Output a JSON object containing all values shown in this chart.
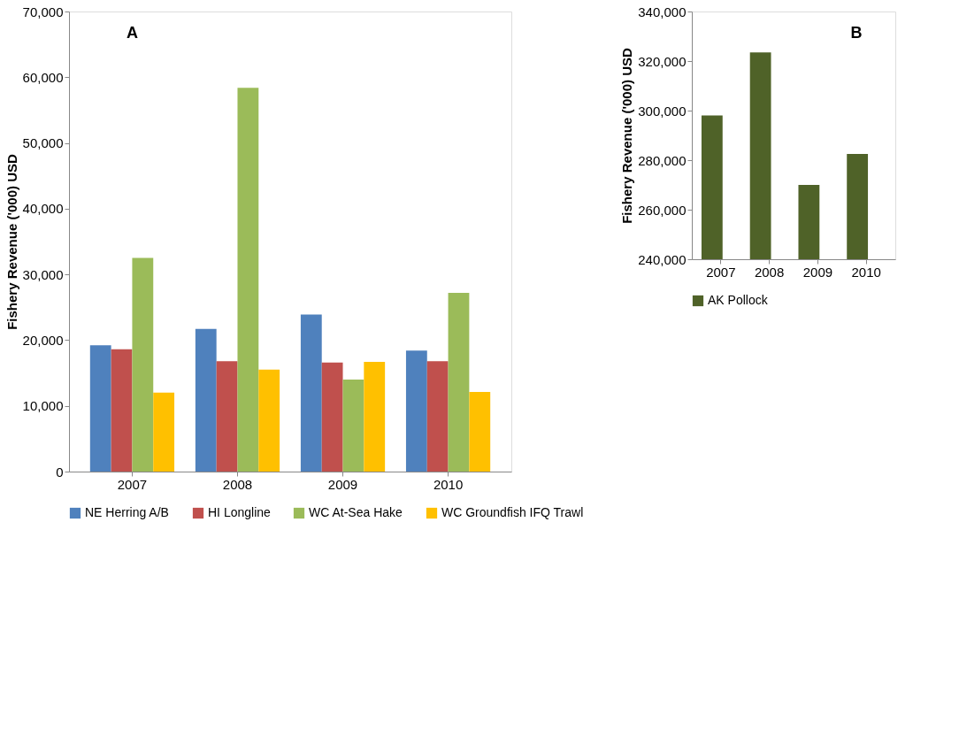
{
  "chart_data": [
    {
      "type": "bar",
      "ylabel": "Fishery Revenue ('000) USD",
      "annotations": [
        "A"
      ],
      "categories": [
        "2007",
        "2008",
        "2009",
        "2010"
      ],
      "series": [
        {
          "name": "NE Herring A/B",
          "color": "#4f81bd",
          "values": [
            19200,
            21700,
            23900,
            18400
          ]
        },
        {
          "name": "HI Longline",
          "color": "#c0504d",
          "values": [
            18600,
            16800,
            16600,
            16800
          ]
        },
        {
          "name": "WC At-Sea Hake",
          "color": "#9bbb59",
          "values": [
            32500,
            58400,
            14000,
            27200
          ]
        },
        {
          "name": "WC Groundfish IFQ Trawl",
          "color": "#ffc000",
          "values": [
            12000,
            15500,
            16700,
            12100
          ]
        }
      ],
      "ylim": [
        0,
        70000
      ],
      "yticks": [
        0,
        {
          "value": 10000,
          "label": "10,000"
        },
        {
          "value": 20000,
          "label": "20,000"
        },
        {
          "value": 30000,
          "label": "30,000"
        },
        {
          "value": 40000,
          "label": "40,000"
        },
        {
          "value": 50000,
          "label": "50,000"
        },
        {
          "value": 60000,
          "label": "60,000"
        },
        {
          "value": 70000,
          "label": "70,000"
        }
      ],
      "grid": false,
      "legend": "bottom"
    },
    {
      "type": "bar",
      "ylabel": "Fishery Revenue ('000) USD",
      "annotations": [
        "B"
      ],
      "categories": [
        "2007",
        "2008",
        "2009",
        "2010"
      ],
      "series": [
        {
          "name": "AK Pollock",
          "color": "#4f6228",
          "values": [
            298000,
            323500,
            270000,
            282500
          ]
        }
      ],
      "ylim": [
        240000,
        340000
      ],
      "yticks": [
        {
          "value": 240000,
          "label": "240,000"
        },
        {
          "value": 260000,
          "label": "260,000"
        },
        {
          "value": 280000,
          "label": "280,000"
        },
        {
          "value": 300000,
          "label": "300,000"
        },
        {
          "value": 320000,
          "label": "320,000"
        },
        {
          "value": 340000,
          "label": "340,000"
        }
      ],
      "grid": false,
      "legend": "bottom"
    }
  ]
}
